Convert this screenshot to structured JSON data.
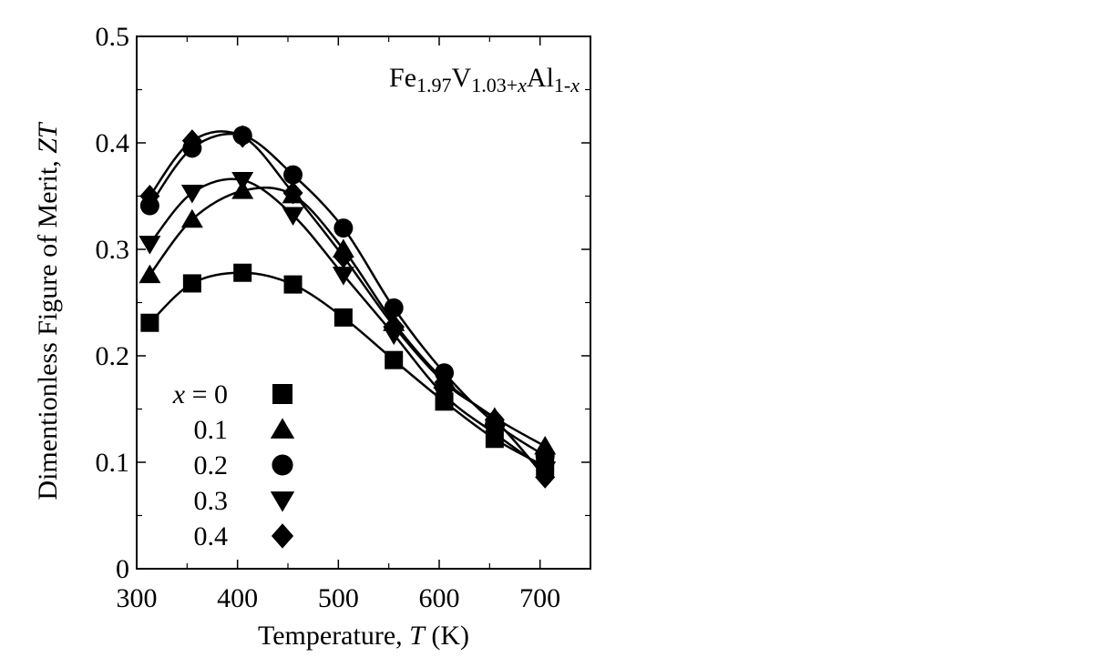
{
  "chart_data": {
    "type": "scatter",
    "title": {
      "parts": [
        {
          "text": "Fe",
          "italic": false,
          "sub": false
        },
        {
          "text": "1.97",
          "italic": false,
          "sub": true
        },
        {
          "text": "V",
          "italic": false,
          "sub": false
        },
        {
          "text": "1.03+",
          "italic": false,
          "sub": true
        },
        {
          "text": "x",
          "italic": true,
          "sub": true
        },
        {
          "text": "Al",
          "italic": false,
          "sub": false
        },
        {
          "text": "1-",
          "italic": false,
          "sub": true
        },
        {
          "text": "x",
          "italic": true,
          "sub": true
        }
      ]
    },
    "xlabel": {
      "prefix": "Temperature, ",
      "var": "T",
      "suffix": " (K)"
    },
    "ylabel": {
      "prefix": "Dimentionless Figure of Merit, ",
      "var": "ZT"
    },
    "xlim": [
      300,
      750
    ],
    "ylim": [
      0,
      0.5
    ],
    "xticks": [
      "300",
      "400",
      "500",
      "600",
      "700"
    ],
    "yticks": [
      "0",
      "0.1",
      "0.2",
      "0.3",
      "0.4",
      "0.5"
    ],
    "legend_var": "x",
    "legend_placement": "lower-left",
    "series": [
      {
        "name": "0",
        "label": "= 0",
        "marker": "square",
        "x": [
          313,
          355,
          405,
          455,
          505,
          555,
          605,
          655,
          705
        ],
        "y": [
          0.231,
          0.268,
          0.278,
          0.267,
          0.236,
          0.196,
          0.157,
          0.122,
          0.096
        ]
      },
      {
        "name": "0.1",
        "label": "0.1",
        "marker": "triangle-up",
        "x": [
          313,
          355,
          405,
          455,
          505,
          555,
          605,
          655,
          705
        ],
        "y": [
          0.276,
          0.328,
          0.355,
          0.351,
          0.3,
          0.231,
          0.177,
          0.142,
          0.115
        ]
      },
      {
        "name": "0.2",
        "label": "0.2",
        "marker": "circle",
        "x": [
          313,
          355,
          405,
          455,
          505,
          555,
          605,
          655,
          705
        ],
        "y": [
          0.341,
          0.395,
          0.407,
          0.37,
          0.32,
          0.245,
          0.184,
          0.137,
          0.106
        ]
      },
      {
        "name": "0.3",
        "label": "0.3",
        "marker": "triangle-down",
        "x": [
          313,
          355,
          405,
          455,
          505,
          555,
          605,
          655,
          705
        ],
        "y": [
          0.305,
          0.353,
          0.365,
          0.332,
          0.276,
          0.22,
          0.163,
          0.127,
          0.093
        ]
      },
      {
        "name": "0.4",
        "label": "0.4",
        "marker": "diamond",
        "x": [
          313,
          355,
          405,
          455,
          505,
          555,
          605,
          655,
          705
        ],
        "y": [
          0.35,
          0.402,
          0.406,
          0.353,
          0.293,
          0.228,
          0.175,
          0.14,
          0.086
        ]
      }
    ],
    "grid": false
  }
}
